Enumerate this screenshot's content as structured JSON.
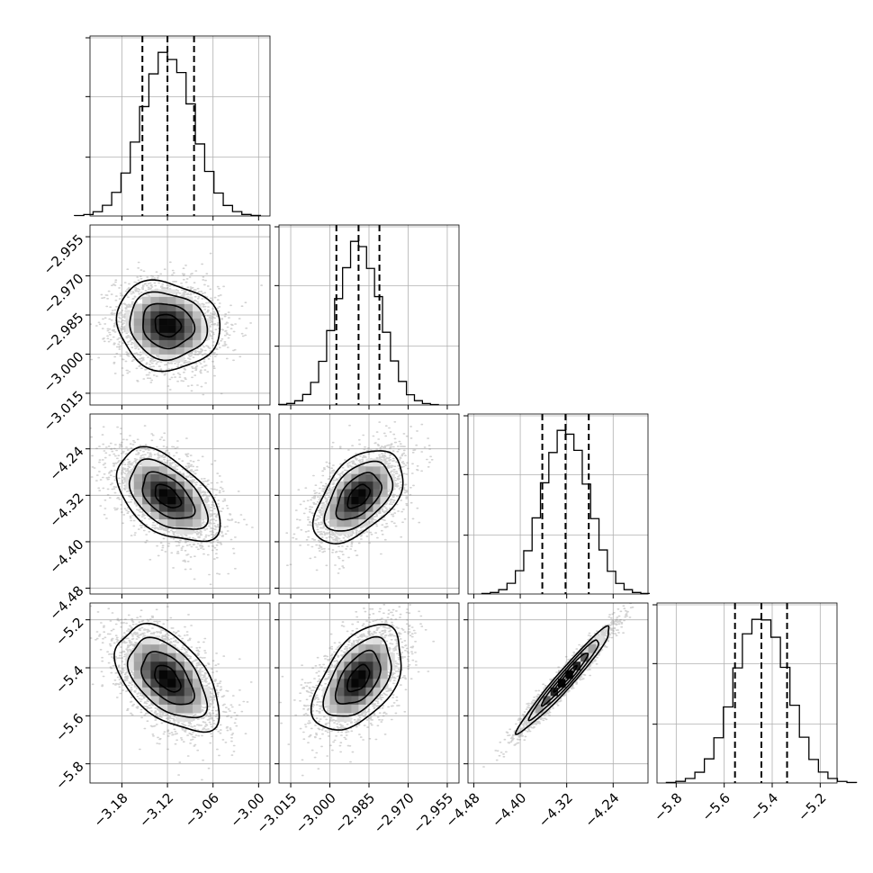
{
  "chart_data": {
    "type": "corner",
    "n_params": 4,
    "parameters": [
      {
        "xticks": [
          -3.18,
          -3.12,
          -3.06,
          -3.0
        ],
        "xlim": [
          -3.222,
          -2.985
        ],
        "quantiles": [
          -3.153,
          -3.12,
          -3.085
        ],
        "mean": -3.12,
        "sd": 0.034
      },
      {
        "xticks": [
          -3.015,
          -3.0,
          -2.985,
          -2.97,
          -2.955
        ],
        "xlim": [
          -3.0195,
          -2.9505
        ],
        "quantiles": [
          -2.9975,
          -2.989,
          -2.981
        ],
        "mean": -2.989,
        "sd": 0.0085
      },
      {
        "xticks": [
          -4.48,
          -4.4,
          -4.32,
          -4.24
        ],
        "xlim": [
          -4.49,
          -4.18
        ],
        "quantiles": [
          -4.362,
          -4.322,
          -4.282
        ],
        "mean": -4.322,
        "sd": 0.04
      },
      {
        "xticks": [
          -5.8,
          -5.6,
          -5.4,
          -5.2
        ],
        "xlim": [
          -5.88,
          -5.13
        ],
        "quantiles": [
          -5.555,
          -5.445,
          -5.338
        ],
        "mean": -5.445,
        "sd": 0.11
      }
    ],
    "yticks": {
      "1": [
        "-2.955",
        "-2.970",
        "-2.985",
        "-3.000",
        "-3.015"
      ],
      "2": [
        "-4.24",
        "-4.32",
        "-4.40",
        "-4.48"
      ],
      "3": [
        "-5.2",
        "-5.4",
        "-5.6",
        "-5.8"
      ]
    },
    "correlations": {
      "1-0": -0.1,
      "2-0": -0.5,
      "2-1": 0.5,
      "3-0": -0.5,
      "3-1": 0.5,
      "3-2": 0.97
    },
    "histogram": {
      "bins": 20,
      "line_color": "#000000"
    },
    "quantile_style": "dashed",
    "contour_levels_sigma": [
      0.5,
      1.0,
      1.5,
      2.0
    ],
    "grid": true,
    "sample_points_color": "#7f7f7f"
  }
}
